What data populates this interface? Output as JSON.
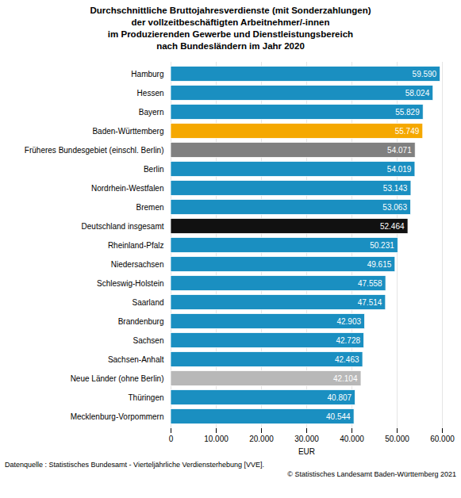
{
  "chart_data": {
    "type": "bar",
    "orientation": "horizontal",
    "title": "Durchschnittliche Bruttojahresverdienste (mit Sonderzahlungen)\nder vollzeitbeschäftigten Arbeitnehmer/-innen\nim Produzierenden Gewerbe und Dienstleistungsbereich\nnach Bundesländern im Jahr 2020",
    "categories": [
      "Mecklenburg-Vorpommern",
      "Thüringen",
      "Neue Länder (ohne Berlin)",
      "Sachsen-Anhalt",
      "Sachsen",
      "Brandenburg",
      "Saarland",
      "Schleswig-Holstein",
      "Niedersachsen",
      "Rheinland-Pfalz",
      "Deutschland insgesamt",
      "Bremen",
      "Nordrhein-Westfalen",
      "Berlin",
      "Früheres Bundesgebiet (einschl. Berlin)",
      "Baden-Württemberg",
      "Bayern",
      "Hessen",
      "Hamburg"
    ],
    "values": [
      40544,
      40807,
      42104,
      42463,
      42728,
      42903,
      47514,
      47558,
      49615,
      50231,
      52464,
      53063,
      53143,
      54019,
      54071,
      55749,
      55829,
      58024,
      59590
    ],
    "value_labels": [
      "40.544",
      "40.807",
      "42.104",
      "42.463",
      "42.728",
      "42.903",
      "47.514",
      "47.558",
      "49.615",
      "50.231",
      "52.464",
      "53.063",
      "53.143",
      "54.019",
      "54.071",
      "55.749",
      "55.829",
      "58.024",
      "59.590"
    ],
    "data_labels": true,
    "colors": [
      "#1a8fc1",
      "#1a8fc1",
      "#b8b8b8",
      "#1a8fc1",
      "#1a8fc1",
      "#1a8fc1",
      "#1a8fc1",
      "#1a8fc1",
      "#1a8fc1",
      "#1a8fc1",
      "#111111",
      "#1a8fc1",
      "#1a8fc1",
      "#1a8fc1",
      "#808080",
      "#f5a800",
      "#1a8fc1",
      "#1a8fc1",
      "#1a8fc1"
    ],
    "xlabel": "EUR",
    "xlim": [
      0,
      60000
    ],
    "xticks": [
      0,
      {
        "value": 10000,
        "label": "10.000"
      },
      {
        "value": 20000,
        "label": "20.000"
      },
      {
        "value": 30000,
        "label": "30.000"
      },
      {
        "value": 40000,
        "label": "40.000"
      },
      {
        "value": 50000,
        "label": "50.000"
      },
      {
        "value": 60000,
        "label": "60.000"
      }
    ],
    "grid": true,
    "annotations": [
      "Datenquelle : Statistisches Bundesamt - Vierteljährliche Verdiensterhebung  [VVE].",
      "© Statistisches Landesamt Baden-Württemberg 2021"
    ]
  }
}
